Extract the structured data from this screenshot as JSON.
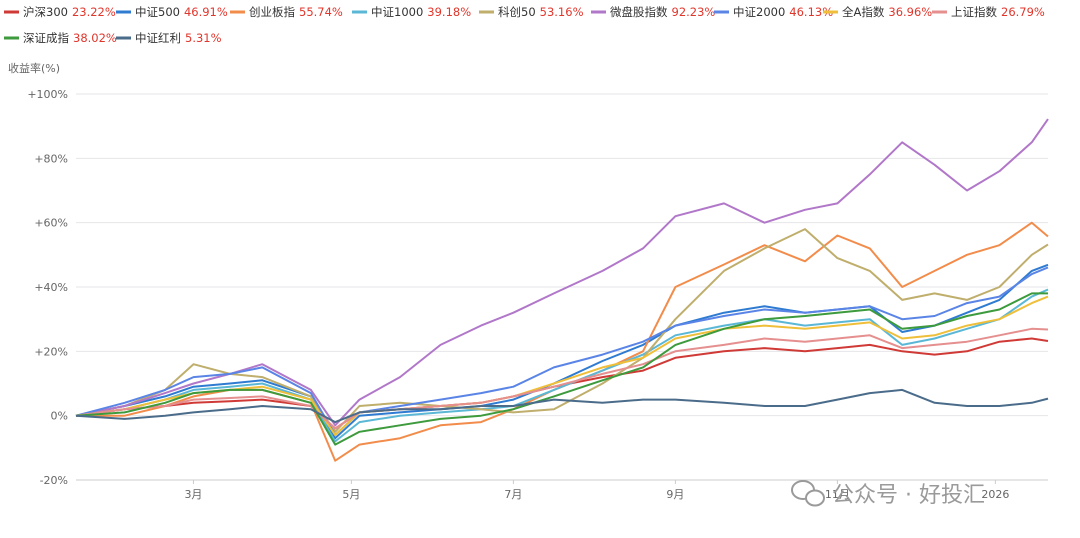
{
  "chart_data": {
    "type": "line",
    "y_unit_label": "收益率(%)",
    "ylim": [
      -20,
      100
    ],
    "y_ticks": [
      -20,
      0,
      20,
      40,
      60,
      80,
      100
    ],
    "y_tick_labels": [
      "-20%",
      "0%",
      "+20%",
      "+40%",
      "+60%",
      "+80%",
      "+100%"
    ],
    "x_ticks": [
      2.45,
      4.4,
      6.4,
      8.4,
      10.4,
      12.35
    ],
    "x_tick_labels": [
      "3月",
      "5月",
      "7月",
      "9月",
      "11月",
      "2026"
    ],
    "xlim": [
      1,
      13
    ],
    "grid": true,
    "legend_position": "top-left",
    "series": [
      {
        "name": "沪深300",
        "final": "23.22%",
        "color": "#d03a36",
        "points": [
          [
            1,
            0
          ],
          [
            1.6,
            2
          ],
          [
            2.1,
            3
          ],
          [
            2.45,
            4
          ],
          [
            2.9,
            4.5
          ],
          [
            3.3,
            5
          ],
          [
            3.9,
            3
          ],
          [
            4.2,
            -4
          ],
          [
            4.5,
            1
          ],
          [
            5,
            2
          ],
          [
            5.5,
            3
          ],
          [
            6,
            4
          ],
          [
            6.4,
            6
          ],
          [
            6.9,
            9
          ],
          [
            7.5,
            12
          ],
          [
            8,
            14
          ],
          [
            8.4,
            18
          ],
          [
            9,
            20
          ],
          [
            9.5,
            21
          ],
          [
            10,
            20
          ],
          [
            10.4,
            21
          ],
          [
            10.8,
            22
          ],
          [
            11.2,
            20
          ],
          [
            11.6,
            19
          ],
          [
            12,
            20
          ],
          [
            12.4,
            23
          ],
          [
            12.8,
            24
          ],
          [
            13,
            23.2
          ]
        ]
      },
      {
        "name": "中证500",
        "final": "46.91%",
        "color": "#2e7bd1",
        "points": [
          [
            1,
            0
          ],
          [
            1.6,
            3
          ],
          [
            2.1,
            6
          ],
          [
            2.45,
            9
          ],
          [
            2.9,
            10
          ],
          [
            3.3,
            11
          ],
          [
            3.9,
            6
          ],
          [
            4.2,
            -7
          ],
          [
            4.5,
            0
          ],
          [
            5,
            1
          ],
          [
            5.5,
            2
          ],
          [
            6,
            3
          ],
          [
            6.4,
            5
          ],
          [
            6.9,
            10
          ],
          [
            7.5,
            17
          ],
          [
            8,
            22
          ],
          [
            8.4,
            28
          ],
          [
            9,
            32
          ],
          [
            9.5,
            34
          ],
          [
            10,
            32
          ],
          [
            10.4,
            33
          ],
          [
            10.8,
            34
          ],
          [
            11.2,
            26
          ],
          [
            11.6,
            28
          ],
          [
            12,
            32
          ],
          [
            12.4,
            36
          ],
          [
            12.8,
            45
          ],
          [
            13,
            46.9
          ]
        ]
      },
      {
        "name": "创业板指",
        "final": "55.74%",
        "color": "#f28c4b",
        "points": [
          [
            1,
            0
          ],
          [
            1.6,
            0
          ],
          [
            2.1,
            3
          ],
          [
            2.45,
            6
          ],
          [
            2.9,
            8
          ],
          [
            3.3,
            8
          ],
          [
            3.9,
            4
          ],
          [
            4.2,
            -14
          ],
          [
            4.5,
            -9
          ],
          [
            5,
            -7
          ],
          [
            5.5,
            -3
          ],
          [
            6,
            -2
          ],
          [
            6.4,
            2
          ],
          [
            6.9,
            8
          ],
          [
            7.5,
            14
          ],
          [
            8,
            20
          ],
          [
            8.4,
            40
          ],
          [
            9,
            47
          ],
          [
            9.5,
            53
          ],
          [
            10,
            48
          ],
          [
            10.4,
            56
          ],
          [
            10.8,
            52
          ],
          [
            11.2,
            40
          ],
          [
            11.6,
            45
          ],
          [
            12,
            50
          ],
          [
            12.4,
            53
          ],
          [
            12.8,
            60
          ],
          [
            13,
            55.7
          ]
        ]
      },
      {
        "name": "中证1000",
        "final": "39.18%",
        "color": "#5bb7d6",
        "points": [
          [
            1,
            0
          ],
          [
            1.6,
            2
          ],
          [
            2.1,
            5
          ],
          [
            2.45,
            8
          ],
          [
            2.9,
            9
          ],
          [
            3.3,
            10
          ],
          [
            3.9,
            5
          ],
          [
            4.2,
            -8
          ],
          [
            4.5,
            -2
          ],
          [
            5,
            0
          ],
          [
            5.5,
            1
          ],
          [
            6,
            2
          ],
          [
            6.4,
            3
          ],
          [
            6.9,
            8
          ],
          [
            7.5,
            14
          ],
          [
            8,
            19
          ],
          [
            8.4,
            25
          ],
          [
            9,
            28
          ],
          [
            9.5,
            30
          ],
          [
            10,
            28
          ],
          [
            10.4,
            29
          ],
          [
            10.8,
            30
          ],
          [
            11.2,
            22
          ],
          [
            11.6,
            24
          ],
          [
            12,
            27
          ],
          [
            12.4,
            30
          ],
          [
            12.8,
            37
          ],
          [
            13,
            39.2
          ]
        ]
      },
      {
        "name": "科创50",
        "final": "53.16%",
        "color": "#bfae6c",
        "points": [
          [
            1,
            0
          ],
          [
            1.6,
            3
          ],
          [
            2.1,
            8
          ],
          [
            2.45,
            16
          ],
          [
            2.9,
            13
          ],
          [
            3.3,
            12
          ],
          [
            3.9,
            6
          ],
          [
            4.2,
            -5
          ],
          [
            4.5,
            3
          ],
          [
            5,
            4
          ],
          [
            5.5,
            3
          ],
          [
            6,
            2
          ],
          [
            6.4,
            1
          ],
          [
            6.9,
            2
          ],
          [
            7.5,
            10
          ],
          [
            8,
            18
          ],
          [
            8.4,
            30
          ],
          [
            9,
            45
          ],
          [
            9.5,
            52
          ],
          [
            10,
            58
          ],
          [
            10.4,
            49
          ],
          [
            10.8,
            45
          ],
          [
            11.2,
            36
          ],
          [
            11.6,
            38
          ],
          [
            12,
            36
          ],
          [
            12.4,
            40
          ],
          [
            12.8,
            50
          ],
          [
            13,
            53.2
          ]
        ]
      },
      {
        "name": "微盘股指数",
        "final": "92.23%",
        "color": "#b177c9",
        "points": [
          [
            1,
            0
          ],
          [
            1.6,
            3
          ],
          [
            2.1,
            7
          ],
          [
            2.45,
            10
          ],
          [
            2.9,
            13
          ],
          [
            3.3,
            16
          ],
          [
            3.9,
            8
          ],
          [
            4.2,
            -3
          ],
          [
            4.5,
            5
          ],
          [
            5,
            12
          ],
          [
            5.5,
            22
          ],
          [
            6,
            28
          ],
          [
            6.4,
            32
          ],
          [
            6.9,
            38
          ],
          [
            7.5,
            45
          ],
          [
            8,
            52
          ],
          [
            8.4,
            62
          ],
          [
            9,
            66
          ],
          [
            9.5,
            60
          ],
          [
            10,
            64
          ],
          [
            10.4,
            66
          ],
          [
            10.8,
            75
          ],
          [
            11.2,
            85
          ],
          [
            11.6,
            78
          ],
          [
            12,
            70
          ],
          [
            12.4,
            76
          ],
          [
            12.8,
            85
          ],
          [
            13,
            92.2
          ]
        ]
      },
      {
        "name": "中证2000",
        "final": "46.13%",
        "color": "#5a85e6",
        "points": [
          [
            1,
            0
          ],
          [
            1.6,
            4
          ],
          [
            2.1,
            8
          ],
          [
            2.45,
            12
          ],
          [
            2.9,
            13
          ],
          [
            3.3,
            15
          ],
          [
            3.9,
            7
          ],
          [
            4.2,
            -6
          ],
          [
            4.5,
            1
          ],
          [
            5,
            3
          ],
          [
            5.5,
            5
          ],
          [
            6,
            7
          ],
          [
            6.4,
            9
          ],
          [
            6.9,
            15
          ],
          [
            7.5,
            19
          ],
          [
            8,
            23
          ],
          [
            8.4,
            28
          ],
          [
            9,
            31
          ],
          [
            9.5,
            33
          ],
          [
            10,
            32
          ],
          [
            10.4,
            33
          ],
          [
            10.8,
            34
          ],
          [
            11.2,
            30
          ],
          [
            11.6,
            31
          ],
          [
            12,
            35
          ],
          [
            12.4,
            37
          ],
          [
            12.8,
            44
          ],
          [
            13,
            46.1
          ]
        ]
      },
      {
        "name": "全A指数",
        "final": "36.96%",
        "color": "#efbf3a",
        "points": [
          [
            1,
            0
          ],
          [
            1.6,
            2
          ],
          [
            2.1,
            5
          ],
          [
            2.45,
            7
          ],
          [
            2.9,
            8
          ],
          [
            3.3,
            9
          ],
          [
            3.9,
            5
          ],
          [
            4.2,
            -6
          ],
          [
            4.5,
            1
          ],
          [
            5,
            2
          ],
          [
            5.5,
            3
          ],
          [
            6,
            4
          ],
          [
            6.4,
            6
          ],
          [
            6.9,
            10
          ],
          [
            7.5,
            15
          ],
          [
            8,
            18
          ],
          [
            8.4,
            24
          ],
          [
            9,
            27
          ],
          [
            9.5,
            28
          ],
          [
            10,
            27
          ],
          [
            10.4,
            28
          ],
          [
            10.8,
            29
          ],
          [
            11.2,
            24
          ],
          [
            11.6,
            25
          ],
          [
            12,
            28
          ],
          [
            12.4,
            30
          ],
          [
            12.8,
            35
          ],
          [
            13,
            37
          ]
        ]
      },
      {
        "name": "上证指数",
        "final": "26.79%",
        "color": "#e58f8f",
        "points": [
          [
            1,
            0
          ],
          [
            1.6,
            2
          ],
          [
            2.1,
            3
          ],
          [
            2.45,
            5
          ],
          [
            2.9,
            5.5
          ],
          [
            3.3,
            6
          ],
          [
            3.9,
            3
          ],
          [
            4.2,
            -4
          ],
          [
            4.5,
            1
          ],
          [
            5,
            2
          ],
          [
            5.5,
            3
          ],
          [
            6,
            4
          ],
          [
            6.4,
            6
          ],
          [
            6.9,
            9
          ],
          [
            7.5,
            13
          ],
          [
            8,
            16
          ],
          [
            8.4,
            20
          ],
          [
            9,
            22
          ],
          [
            9.5,
            24
          ],
          [
            10,
            23
          ],
          [
            10.4,
            24
          ],
          [
            10.8,
            25
          ],
          [
            11.2,
            21
          ],
          [
            11.6,
            22
          ],
          [
            12,
            23
          ],
          [
            12.4,
            25
          ],
          [
            12.8,
            27
          ],
          [
            13,
            26.8
          ]
        ]
      },
      {
        "name": "深证成指",
        "final": "38.02%",
        "color": "#3d9a3d",
        "points": [
          [
            1,
            0
          ],
          [
            1.6,
            1
          ],
          [
            2.1,
            4
          ],
          [
            2.45,
            7
          ],
          [
            2.9,
            8
          ],
          [
            3.3,
            8
          ],
          [
            3.9,
            4
          ],
          [
            4.2,
            -9
          ],
          [
            4.5,
            -5
          ],
          [
            5,
            -3
          ],
          [
            5.5,
            -1
          ],
          [
            6,
            0
          ],
          [
            6.4,
            2
          ],
          [
            6.9,
            6
          ],
          [
            7.5,
            11
          ],
          [
            8,
            15
          ],
          [
            8.4,
            22
          ],
          [
            9,
            27
          ],
          [
            9.5,
            30
          ],
          [
            10,
            31
          ],
          [
            10.4,
            32
          ],
          [
            10.8,
            33
          ],
          [
            11.2,
            27
          ],
          [
            11.6,
            28
          ],
          [
            12,
            31
          ],
          [
            12.4,
            33
          ],
          [
            12.8,
            38
          ],
          [
            13,
            38
          ]
        ]
      },
      {
        "name": "中证红利",
        "final": "5.31%",
        "color": "#4a6c8a",
        "points": [
          [
            1,
            0
          ],
          [
            1.6,
            -1
          ],
          [
            2.1,
            0
          ],
          [
            2.45,
            1
          ],
          [
            2.9,
            2
          ],
          [
            3.3,
            3
          ],
          [
            3.9,
            2
          ],
          [
            4.2,
            -2
          ],
          [
            4.5,
            1
          ],
          [
            5,
            2
          ],
          [
            5.5,
            2
          ],
          [
            6,
            3
          ],
          [
            6.4,
            3
          ],
          [
            6.9,
            5
          ],
          [
            7.5,
            4
          ],
          [
            8,
            5
          ],
          [
            8.4,
            5
          ],
          [
            9,
            4
          ],
          [
            9.5,
            3
          ],
          [
            10,
            3
          ],
          [
            10.4,
            5
          ],
          [
            10.8,
            7
          ],
          [
            11.2,
            8
          ],
          [
            11.6,
            4
          ],
          [
            12,
            3
          ],
          [
            12.4,
            3
          ],
          [
            12.8,
            4
          ],
          [
            13,
            5.3
          ]
        ]
      }
    ]
  },
  "watermark": {
    "text": "公众号 · 好投汇",
    "icon": "wechat-icon"
  }
}
